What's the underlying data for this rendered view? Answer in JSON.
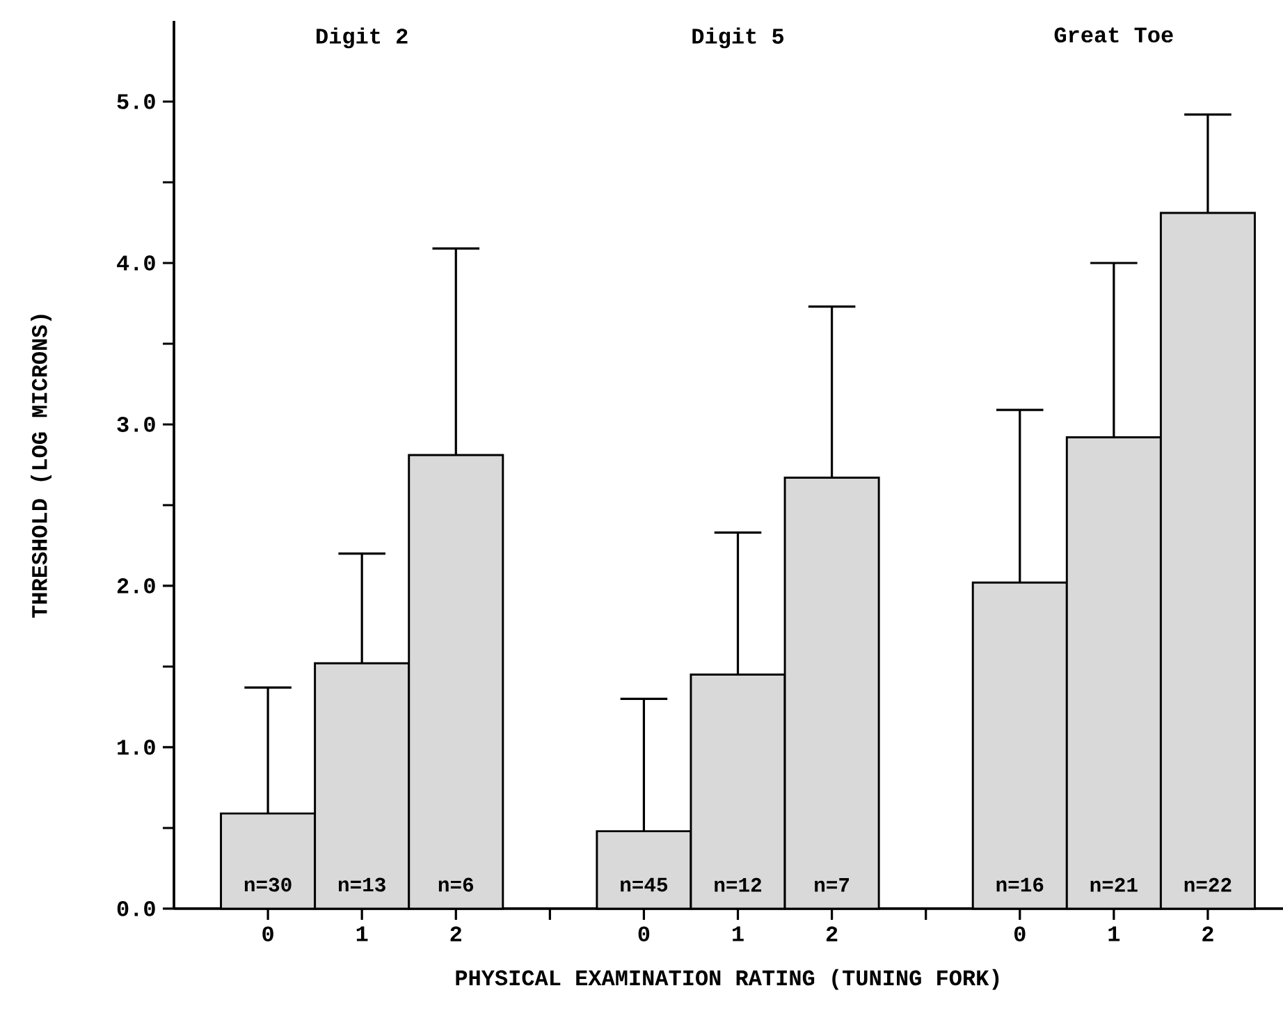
{
  "chart_data": {
    "type": "bar",
    "xlabel": "PHYSICAL EXAMINATION RATING (TUNING FORK)",
    "ylabel": "THRESHOLD (LOG MICRONS)",
    "categories": [
      "0",
      "1",
      "2",
      null,
      "0",
      "1",
      "2",
      null,
      "0",
      "1",
      "2"
    ],
    "values": [
      0.59,
      1.52,
      2.81,
      null,
      0.48,
      1.45,
      2.67,
      null,
      2.02,
      2.92,
      4.31
    ],
    "errors": [
      [
        0.59,
        1.37
      ],
      [
        1.52,
        2.2
      ],
      [
        2.81,
        4.09
      ],
      null,
      [
        0.48,
        1.3
      ],
      [
        1.45,
        2.33
      ],
      [
        2.67,
        3.73
      ],
      null,
      [
        2.02,
        3.09
      ],
      [
        2.92,
        4.0
      ],
      [
        4.31,
        4.92
      ]
    ],
    "color": "#d9d9d9",
    "ylim": [
      0,
      5.5
    ],
    "yticks": [
      {
        "value": 0,
        "label": "0.0"
      },
      {
        "value": 0.5,
        "label": null
      },
      {
        "value": 1,
        "label": "1.0"
      },
      {
        "value": 1.5,
        "label": null
      },
      {
        "value": 2,
        "label": "2.0"
      },
      {
        "value": 2.5,
        "label": null
      },
      {
        "value": 3,
        "label": "3.0"
      },
      {
        "value": 3.5,
        "label": null
      },
      {
        "value": 4,
        "label": "4.0"
      },
      {
        "value": 4.5,
        "label": null
      },
      {
        "value": 5,
        "label": "5.0"
      }
    ],
    "annotations": [
      "Digit 2",
      "Digit 5",
      "Great Toe",
      "n=30",
      "n=13",
      "n=6",
      "n=45",
      "n=12",
      "n=7",
      "n=16",
      "n=21",
      "n=22"
    ]
  }
}
